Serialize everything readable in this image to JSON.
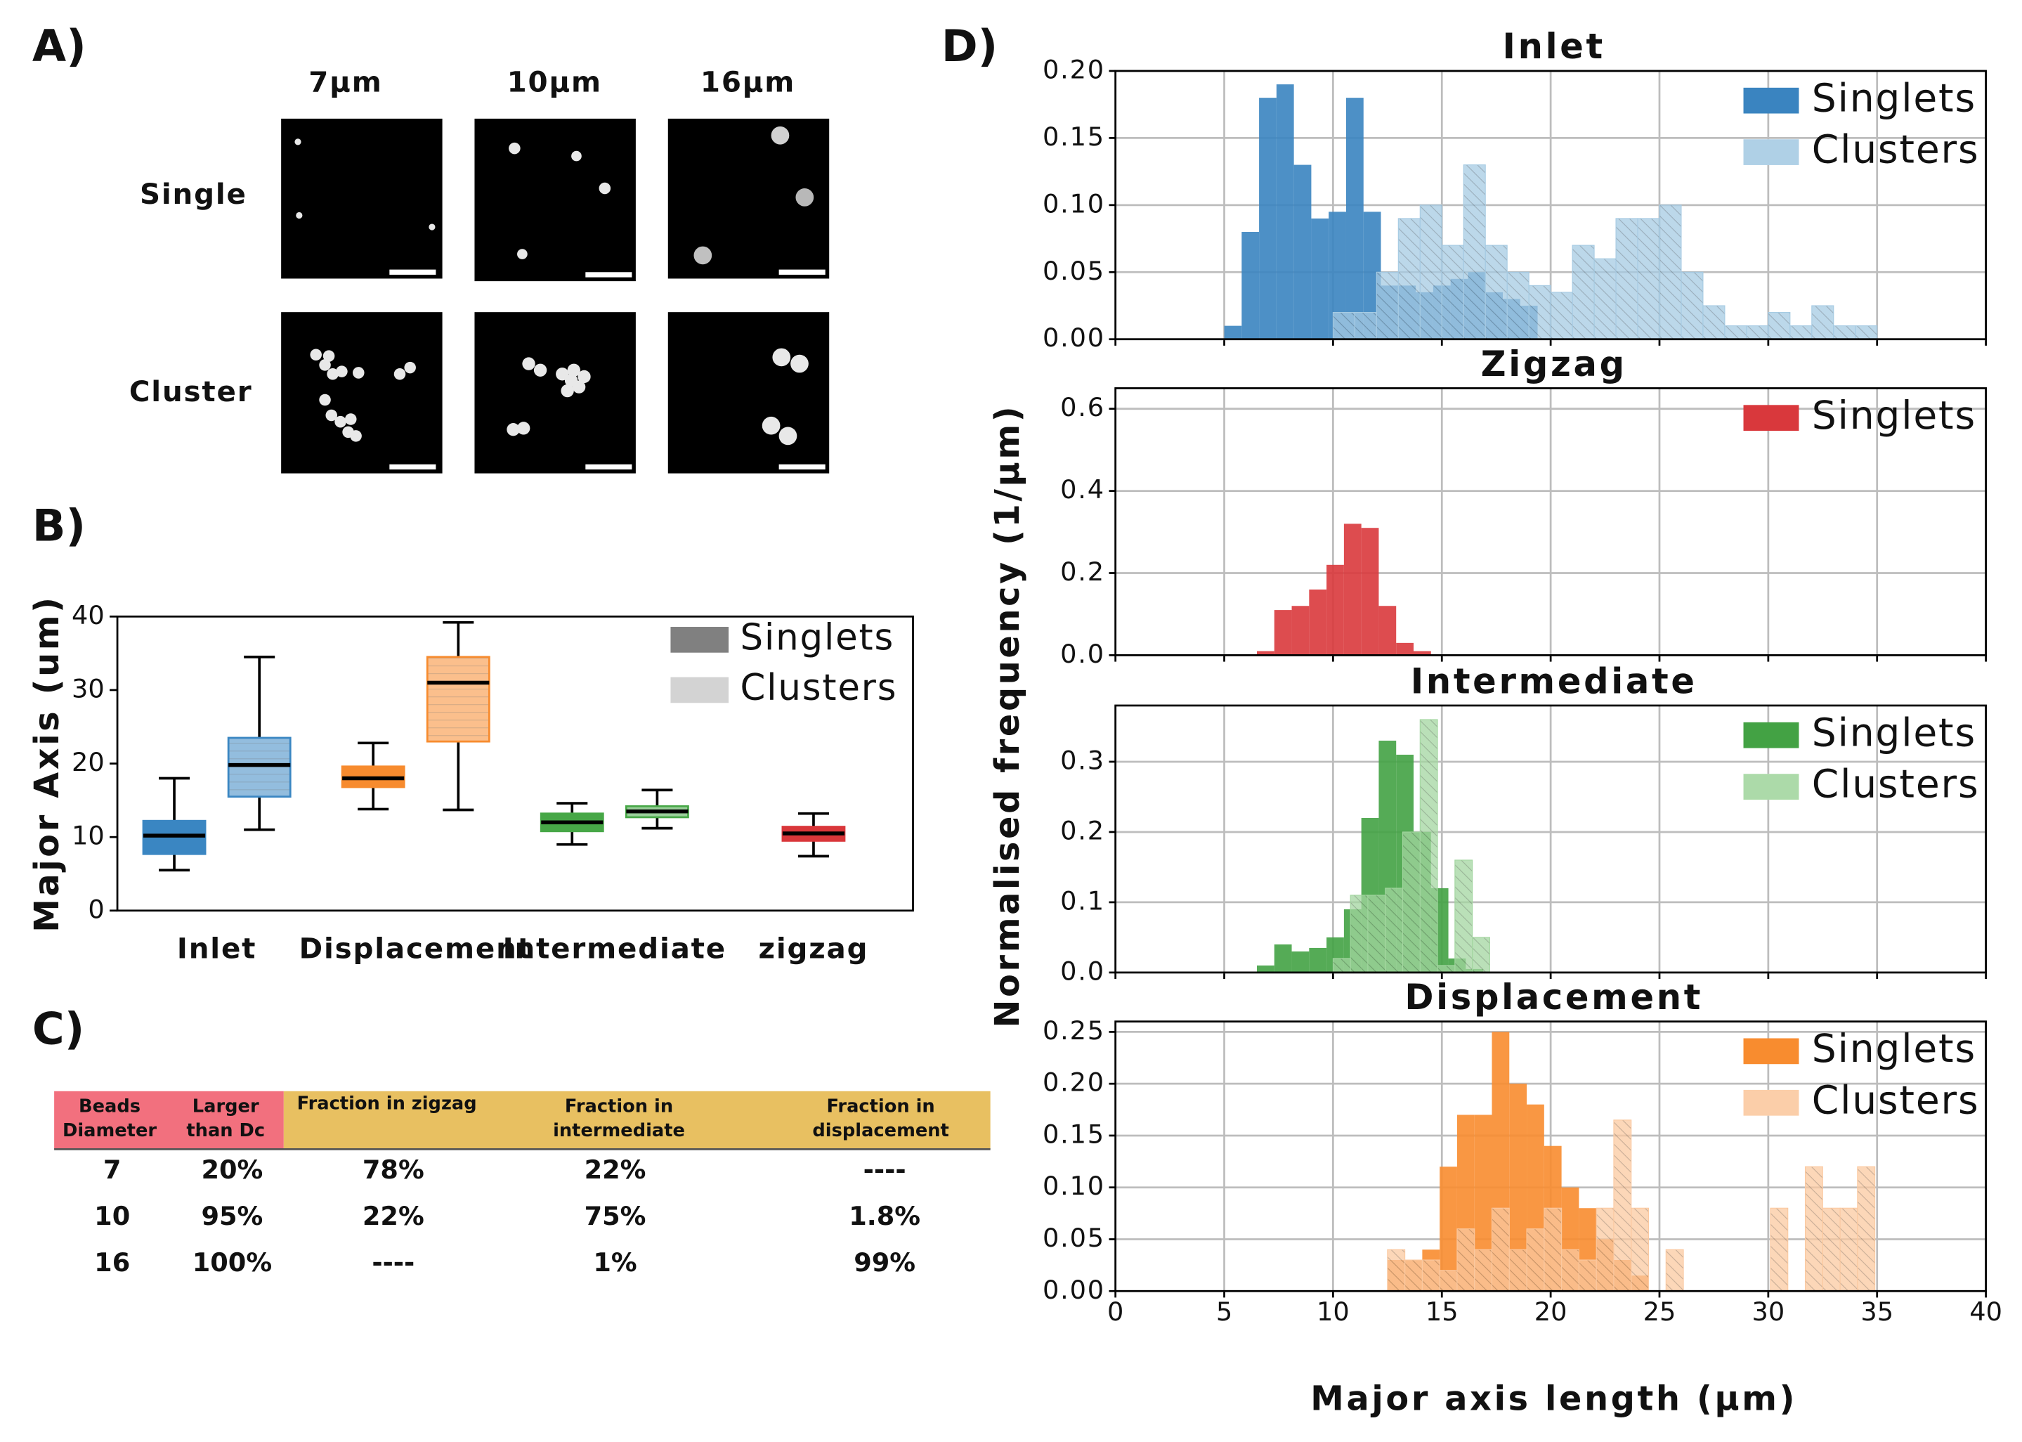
{
  "panel_labels": [
    "A)",
    "B)",
    "C)",
    "D)"
  ],
  "panel_a": {
    "columns": [
      "7µm",
      "10µm",
      "16µm"
    ],
    "rows": [
      "Single",
      "Cluster"
    ]
  },
  "table": {
    "header": [
      [
        "Beads",
        "Diameter"
      ],
      [
        "Larger",
        "than Dc"
      ],
      [
        "Fraction in zigzag"
      ],
      [
        "Fraction in",
        "intermediate"
      ],
      [
        "Fraction in",
        "displacement"
      ]
    ],
    "rows": [
      [
        "7",
        "20%",
        "78%",
        "22%",
        "----"
      ],
      [
        "10",
        "95%",
        "22%",
        "75%",
        "1.8%"
      ],
      [
        "16",
        "100%",
        "----",
        "1%",
        "99%"
      ]
    ]
  },
  "panel_d": {
    "ylabel": "Normalised frequency (1/µm)",
    "xlabel": "Major axis length (µm)"
  },
  "chart_data": [
    {
      "type": "box",
      "ylabel": "Major Axis (um)",
      "categories": [
        "Inlet",
        "Displacement",
        "Intermediate",
        "zigzag"
      ],
      "category_colors": [
        "#3a86c2",
        "#f78b2e",
        "#47a747",
        "#d9373a"
      ],
      "series": [
        {
          "name": "Singlets",
          "color": "#808080",
          "hatch": false,
          "min": [
            5.5,
            13.8,
            9.0,
            7.4
          ],
          "q1": [
            7.7,
            16.8,
            10.8,
            9.5
          ],
          "median": [
            10.2,
            18.0,
            12.0,
            10.5
          ],
          "q3": [
            12.2,
            19.6,
            13.2,
            11.4
          ],
          "max": [
            18.0,
            22.8,
            14.6,
            13.2
          ]
        },
        {
          "name": "Clusters",
          "color": "#d3d3d3",
          "hatch": true,
          "min": [
            11.0,
            13.7,
            11.2,
            null
          ],
          "q1": [
            15.5,
            23.0,
            12.7,
            null
          ],
          "median": [
            19.8,
            31.0,
            13.5,
            null
          ],
          "q3": [
            23.5,
            34.5,
            14.2,
            null
          ],
          "max": [
            34.5,
            39.2,
            16.4,
            null
          ]
        }
      ],
      "ylim": [
        0,
        40
      ],
      "yticks": [
        0,
        10,
        20,
        30,
        40
      ],
      "grid": false
    },
    {
      "type": "histogram",
      "title": "Inlet",
      "xlim": [
        0,
        40
      ],
      "xticks": [
        0,
        5,
        10,
        15,
        20,
        25,
        30,
        35,
        40
      ],
      "xtick_labels": false,
      "ylim": [
        0,
        0.2
      ],
      "yticks": [
        {
          "value": 0,
          "label": "0.00"
        },
        {
          "value": 0.05,
          "label": "0.05"
        },
        {
          "value": 0.1,
          "label": "0.10"
        },
        {
          "value": 0.15,
          "label": "0.15"
        },
        {
          "value": 0.2,
          "label": "0.20"
        }
      ],
      "grid": true,
      "series": [
        {
          "name": "Singlets",
          "color": "#3a84c0",
          "hatch": false,
          "bins": [
            5,
            5.8,
            6.6,
            7.4,
            8.2,
            9,
            9.8,
            10.6,
            11.4,
            12.2,
            13,
            13.8,
            14.6,
            15.4,
            16.2,
            17,
            17.8,
            18.6,
            19.4
          ],
          "values": [
            0.01,
            0.08,
            0.18,
            0.19,
            0.13,
            0.09,
            0.095,
            0.18,
            0.095,
            0.04,
            0.04,
            0.035,
            0.04,
            0.045,
            0.05,
            0.035,
            0.03,
            0.025
          ]
        },
        {
          "name": "Clusters",
          "color": "#a6cbe3",
          "hatch": true,
          "bins": [
            10,
            11,
            12,
            13,
            14,
            15,
            16,
            17,
            18,
            19,
            20,
            21,
            22,
            23,
            24,
            25,
            26,
            27,
            28,
            29,
            30,
            31,
            32,
            33,
            34,
            35
          ],
          "values": [
            0.02,
            0.02,
            0.05,
            0.09,
            0.1,
            0.07,
            0.13,
            0.07,
            0.05,
            0.04,
            0.035,
            0.07,
            0.06,
            0.09,
            0.09,
            0.1,
            0.05,
            0.025,
            0.01,
            0.01,
            0.02,
            0.01,
            0.025,
            0.01,
            0.01
          ]
        }
      ]
    },
    {
      "type": "histogram",
      "title": "Zigzag",
      "xlim": [
        0,
        40
      ],
      "xticks": [
        0,
        5,
        10,
        15,
        20,
        25,
        30,
        35,
        40
      ],
      "xtick_labels": false,
      "ylim": [
        0,
        0.65
      ],
      "yticks": [
        {
          "value": 0,
          "label": "0.0"
        },
        0.2,
        0.4,
        0.6
      ],
      "grid": true,
      "series": [
        {
          "name": "Singlets",
          "color": "#d9383c",
          "hatch": false,
          "bins": [
            6.5,
            7.3,
            8.1,
            8.9,
            9.7,
            10.5,
            11.3,
            12.1,
            12.9,
            13.7,
            14.5
          ],
          "values": [
            0.01,
            0.11,
            0.12,
            0.16,
            0.22,
            0.32,
            0.31,
            0.12,
            0.03,
            0.01
          ]
        }
      ]
    },
    {
      "type": "histogram",
      "title": "Intermediate",
      "xlim": [
        0,
        40
      ],
      "xticks": [
        0,
        5,
        10,
        15,
        20,
        25,
        30,
        35,
        40
      ],
      "xtick_labels": false,
      "ylim": [
        0,
        0.38
      ],
      "yticks": [
        {
          "value": 0,
          "label": "0.0"
        },
        0.1,
        0.2,
        0.3
      ],
      "grid": true,
      "series": [
        {
          "name": "Singlets",
          "color": "#43a244",
          "hatch": false,
          "bins": [
            6.5,
            7.3,
            8.1,
            8.9,
            9.7,
            10.5,
            11.3,
            12.1,
            12.9,
            13.7,
            14.5,
            15.3,
            16.1,
            16.9
          ],
          "values": [
            0.01,
            0.04,
            0.03,
            0.035,
            0.05,
            0.09,
            0.22,
            0.33,
            0.31,
            0.2,
            0.12,
            0.02,
            0.005
          ]
        },
        {
          "name": "Clusters",
          "color": "#a3d6a0",
          "hatch": true,
          "bins": [
            10,
            10.8,
            11.6,
            12.4,
            13.2,
            14,
            14.8,
            15.6,
            16.4,
            17.2
          ],
          "values": [
            0.02,
            0.11,
            0.11,
            0.12,
            0.2,
            0.36,
            0.01,
            0.16,
            0.05
          ]
        }
      ]
    },
    {
      "type": "histogram",
      "title": "Displacement",
      "xlim": [
        0,
        40
      ],
      "xticks": [
        0,
        5,
        10,
        15,
        20,
        25,
        30,
        35,
        40
      ],
      "xtick_labels": true,
      "ylim": [
        0,
        0.26
      ],
      "yticks": [
        {
          "value": 0,
          "label": "0.00"
        },
        {
          "value": 0.05,
          "label": "0.05"
        },
        {
          "value": 0.1,
          "label": "0.10"
        },
        {
          "value": 0.15,
          "label": "0.15"
        },
        {
          "value": 0.2,
          "label": "0.20"
        },
        {
          "value": 0.25,
          "label": "0.25"
        }
      ],
      "grid": true,
      "series": [
        {
          "name": "Singlets",
          "color": "#f88c2f",
          "hatch": false,
          "bins": [
            12.5,
            13.3,
            14.1,
            14.9,
            15.7,
            16.5,
            17.3,
            18.1,
            18.9,
            19.7,
            20.5,
            21.3,
            22.1,
            22.9,
            23.7,
            24.5
          ],
          "values": [
            0.03,
            0.03,
            0.04,
            0.12,
            0.17,
            0.17,
            0.25,
            0.2,
            0.18,
            0.14,
            0.1,
            0.08,
            0.05,
            0.03,
            0.015
          ]
        },
        {
          "name": "Clusters",
          "color": "#fbc9a0",
          "hatch": true,
          "bins": [
            12.5,
            13.3,
            14.1,
            14.9,
            15.7,
            16.5,
            17.3,
            18.1,
            18.9,
            19.7,
            20.5,
            21.3,
            22.1,
            22.9,
            23.7,
            24.5,
            25.3,
            26.1,
            26.9,
            27.7,
            28.5,
            29.3,
            30.1,
            30.9,
            31.7,
            32.5,
            33.3,
            34.1,
            34.9
          ],
          "values": [
            0.04,
            0.03,
            0.03,
            0.02,
            0.06,
            0.04,
            0.08,
            0.04,
            0.06,
            0.08,
            0.04,
            0.03,
            0.08,
            0.165,
            0.08,
            0,
            0.04,
            0,
            0,
            0,
            0,
            0,
            0.08,
            0,
            0.12,
            0.08,
            0.08,
            0.12
          ]
        }
      ]
    }
  ]
}
